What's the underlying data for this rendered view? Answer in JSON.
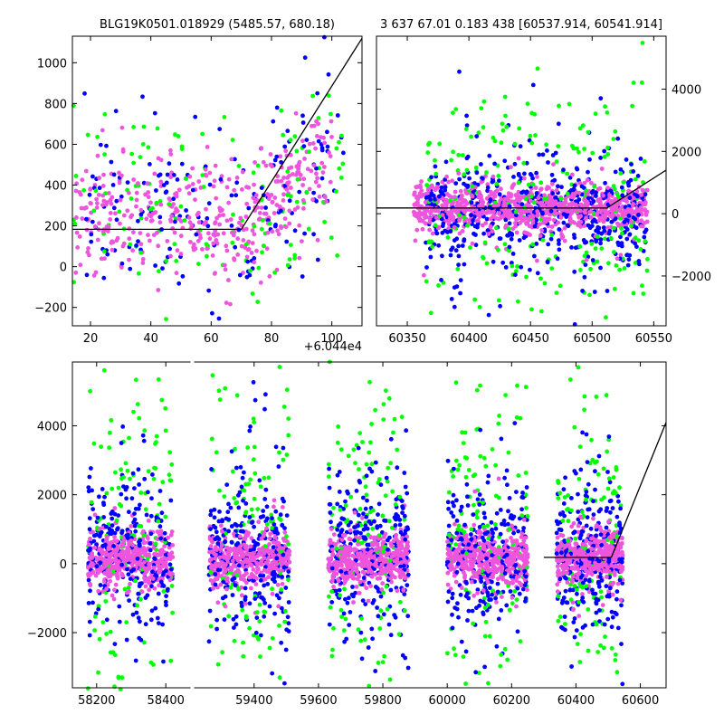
{
  "colors": {
    "green": "#00ff00",
    "blue": "#0000ff",
    "magenta": "#ee55dd",
    "model": "#000000"
  },
  "chart_data": [
    {
      "id": "top-left",
      "type": "scatter",
      "title": "BLG19K0501.018929 (5485.57, 680.18)",
      "xlim": [
        14,
        110
      ],
      "ylim": [
        -290,
        1130
      ],
      "x_offset_label": "+6.044e4",
      "xticks": [
        20,
        40,
        60,
        80,
        100
      ],
      "xtick_labels": [
        "20",
        "40",
        "60",
        "80",
        "100"
      ],
      "yticks": [
        -200,
        0,
        200,
        400,
        600,
        800,
        1000
      ],
      "ytick_labels": [
        "−200",
        "0",
        "200",
        "400",
        "600",
        "800",
        "1000"
      ],
      "yaxis_side": "left",
      "model_line": {
        "x": [
          14,
          70,
          110
        ],
        "y": [
          183,
          183,
          1120
        ]
      },
      "series": [
        {
          "color": "green",
          "count": 130,
          "xrange": [
            14,
            104
          ],
          "center": 300,
          "spread": 420
        },
        {
          "color": "blue",
          "count": 170,
          "xrange": [
            18,
            104
          ],
          "center": 280,
          "spread": 380
        },
        {
          "color": "magenta",
          "count": 420,
          "xrange": [
            15,
            100
          ],
          "center": 230,
          "spread": 260
        }
      ]
    },
    {
      "id": "top-right",
      "type": "scatter",
      "title": "3 637 67.01 0.183 438 [60537.914, 60541.914]",
      "xlim": [
        60325,
        60560
      ],
      "ylim": [
        -3600,
        5700
      ],
      "xticks": [
        60350,
        60400,
        60450,
        60500,
        60550
      ],
      "xtick_labels": [
        "60350",
        "60400",
        "60450",
        "60500",
        "60550"
      ],
      "yticks": [
        -2000,
        0,
        2000,
        4000
      ],
      "ytick_labels": [
        "−2000",
        "0",
        "2000",
        "4000"
      ],
      "yaxis_side": "right",
      "model_line": {
        "x": [
          60325,
          60512,
          60560
        ],
        "y": [
          183,
          183,
          1400
        ]
      },
      "series": [
        {
          "color": "green",
          "count": 260,
          "xrange": [
            60365,
            60545
          ],
          "center": 300,
          "spread": 1900
        },
        {
          "color": "blue",
          "count": 520,
          "xrange": [
            60365,
            60545
          ],
          "center": 100,
          "spread": 850
        },
        {
          "color": "magenta",
          "count": 900,
          "xrange": [
            60355,
            60545
          ],
          "center": 150,
          "spread": 320
        }
      ]
    },
    {
      "id": "bottom",
      "type": "scatter",
      "title": "",
      "ylim": [
        -3600,
        5850
      ],
      "yticks": [
        -2000,
        0,
        2000,
        4000
      ],
      "ytick_labels": [
        "−2000",
        "0",
        "2000",
        "4000"
      ],
      "yaxis_side": "left",
      "segments": [
        {
          "xlim": [
            58130,
            58470
          ],
          "xticks": [
            58200,
            58400
          ],
          "xtick_labels": [
            "58200",
            "58400"
          ]
        },
        {
          "xlim": [
            59215,
            60680
          ],
          "xticks": [
            59400,
            59600,
            59800,
            60000,
            60200,
            60400,
            60600
          ],
          "xtick_labels": [
            "59400",
            "59600",
            "59800",
            "60000",
            "60200",
            "60400",
            "60600"
          ]
        }
      ],
      "model_line": {
        "x": [
          60300,
          60510,
          60680
        ],
        "y": [
          183,
          183,
          4100
        ]
      },
      "seasons": [
        {
          "seg": 0,
          "x": [
            58175,
            58420
          ]
        },
        {
          "seg": 1,
          "x": [
            59260,
            59510
          ]
        },
        {
          "seg": 1,
          "x": [
            59630,
            59880
          ]
        },
        {
          "seg": 1,
          "x": [
            60000,
            60250
          ]
        },
        {
          "seg": 1,
          "x": [
            60340,
            60545
          ]
        }
      ],
      "series": [
        {
          "color": "green",
          "per_season": 130,
          "center": 900,
          "spread": 2300
        },
        {
          "color": "blue",
          "per_season": 260,
          "center": 250,
          "spread": 1000
        },
        {
          "color": "magenta",
          "per_season": 420,
          "center": 150,
          "spread": 340
        }
      ]
    }
  ]
}
